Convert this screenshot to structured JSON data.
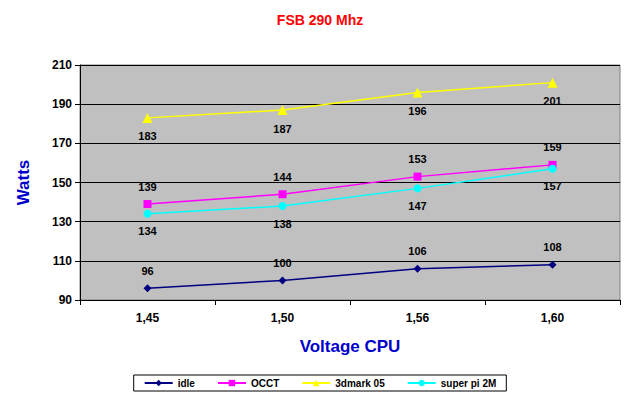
{
  "chart_data": {
    "type": "line",
    "title": "FSB 290 Mhz",
    "x_label": "Voltage CPU",
    "y_label": "Watts",
    "categories": [
      "1,45",
      "1,50",
      "1,56",
      "1,60"
    ],
    "series": [
      {
        "name": "idle",
        "color": "#000080",
        "marker": "diamond",
        "values": [
          96,
          100,
          106,
          108
        ]
      },
      {
        "name": "OCCT",
        "color": "#FF00FF",
        "marker": "square",
        "values": [
          139,
          144,
          153,
          159
        ]
      },
      {
        "name": "3dmark 05",
        "color": "#FFFF00",
        "marker": "triangle",
        "values": [
          183,
          187,
          196,
          201
        ]
      },
      {
        "name": "super pi 2M",
        "color": "#00FFFF",
        "marker": "circle",
        "values": [
          134,
          138,
          147,
          157
        ]
      }
    ],
    "ylim": [
      90,
      210
    ],
    "yticks": [
      90,
      110,
      130,
      150,
      170,
      190,
      210
    ],
    "grid": true,
    "legend": "bottom",
    "data_labels": true
  }
}
